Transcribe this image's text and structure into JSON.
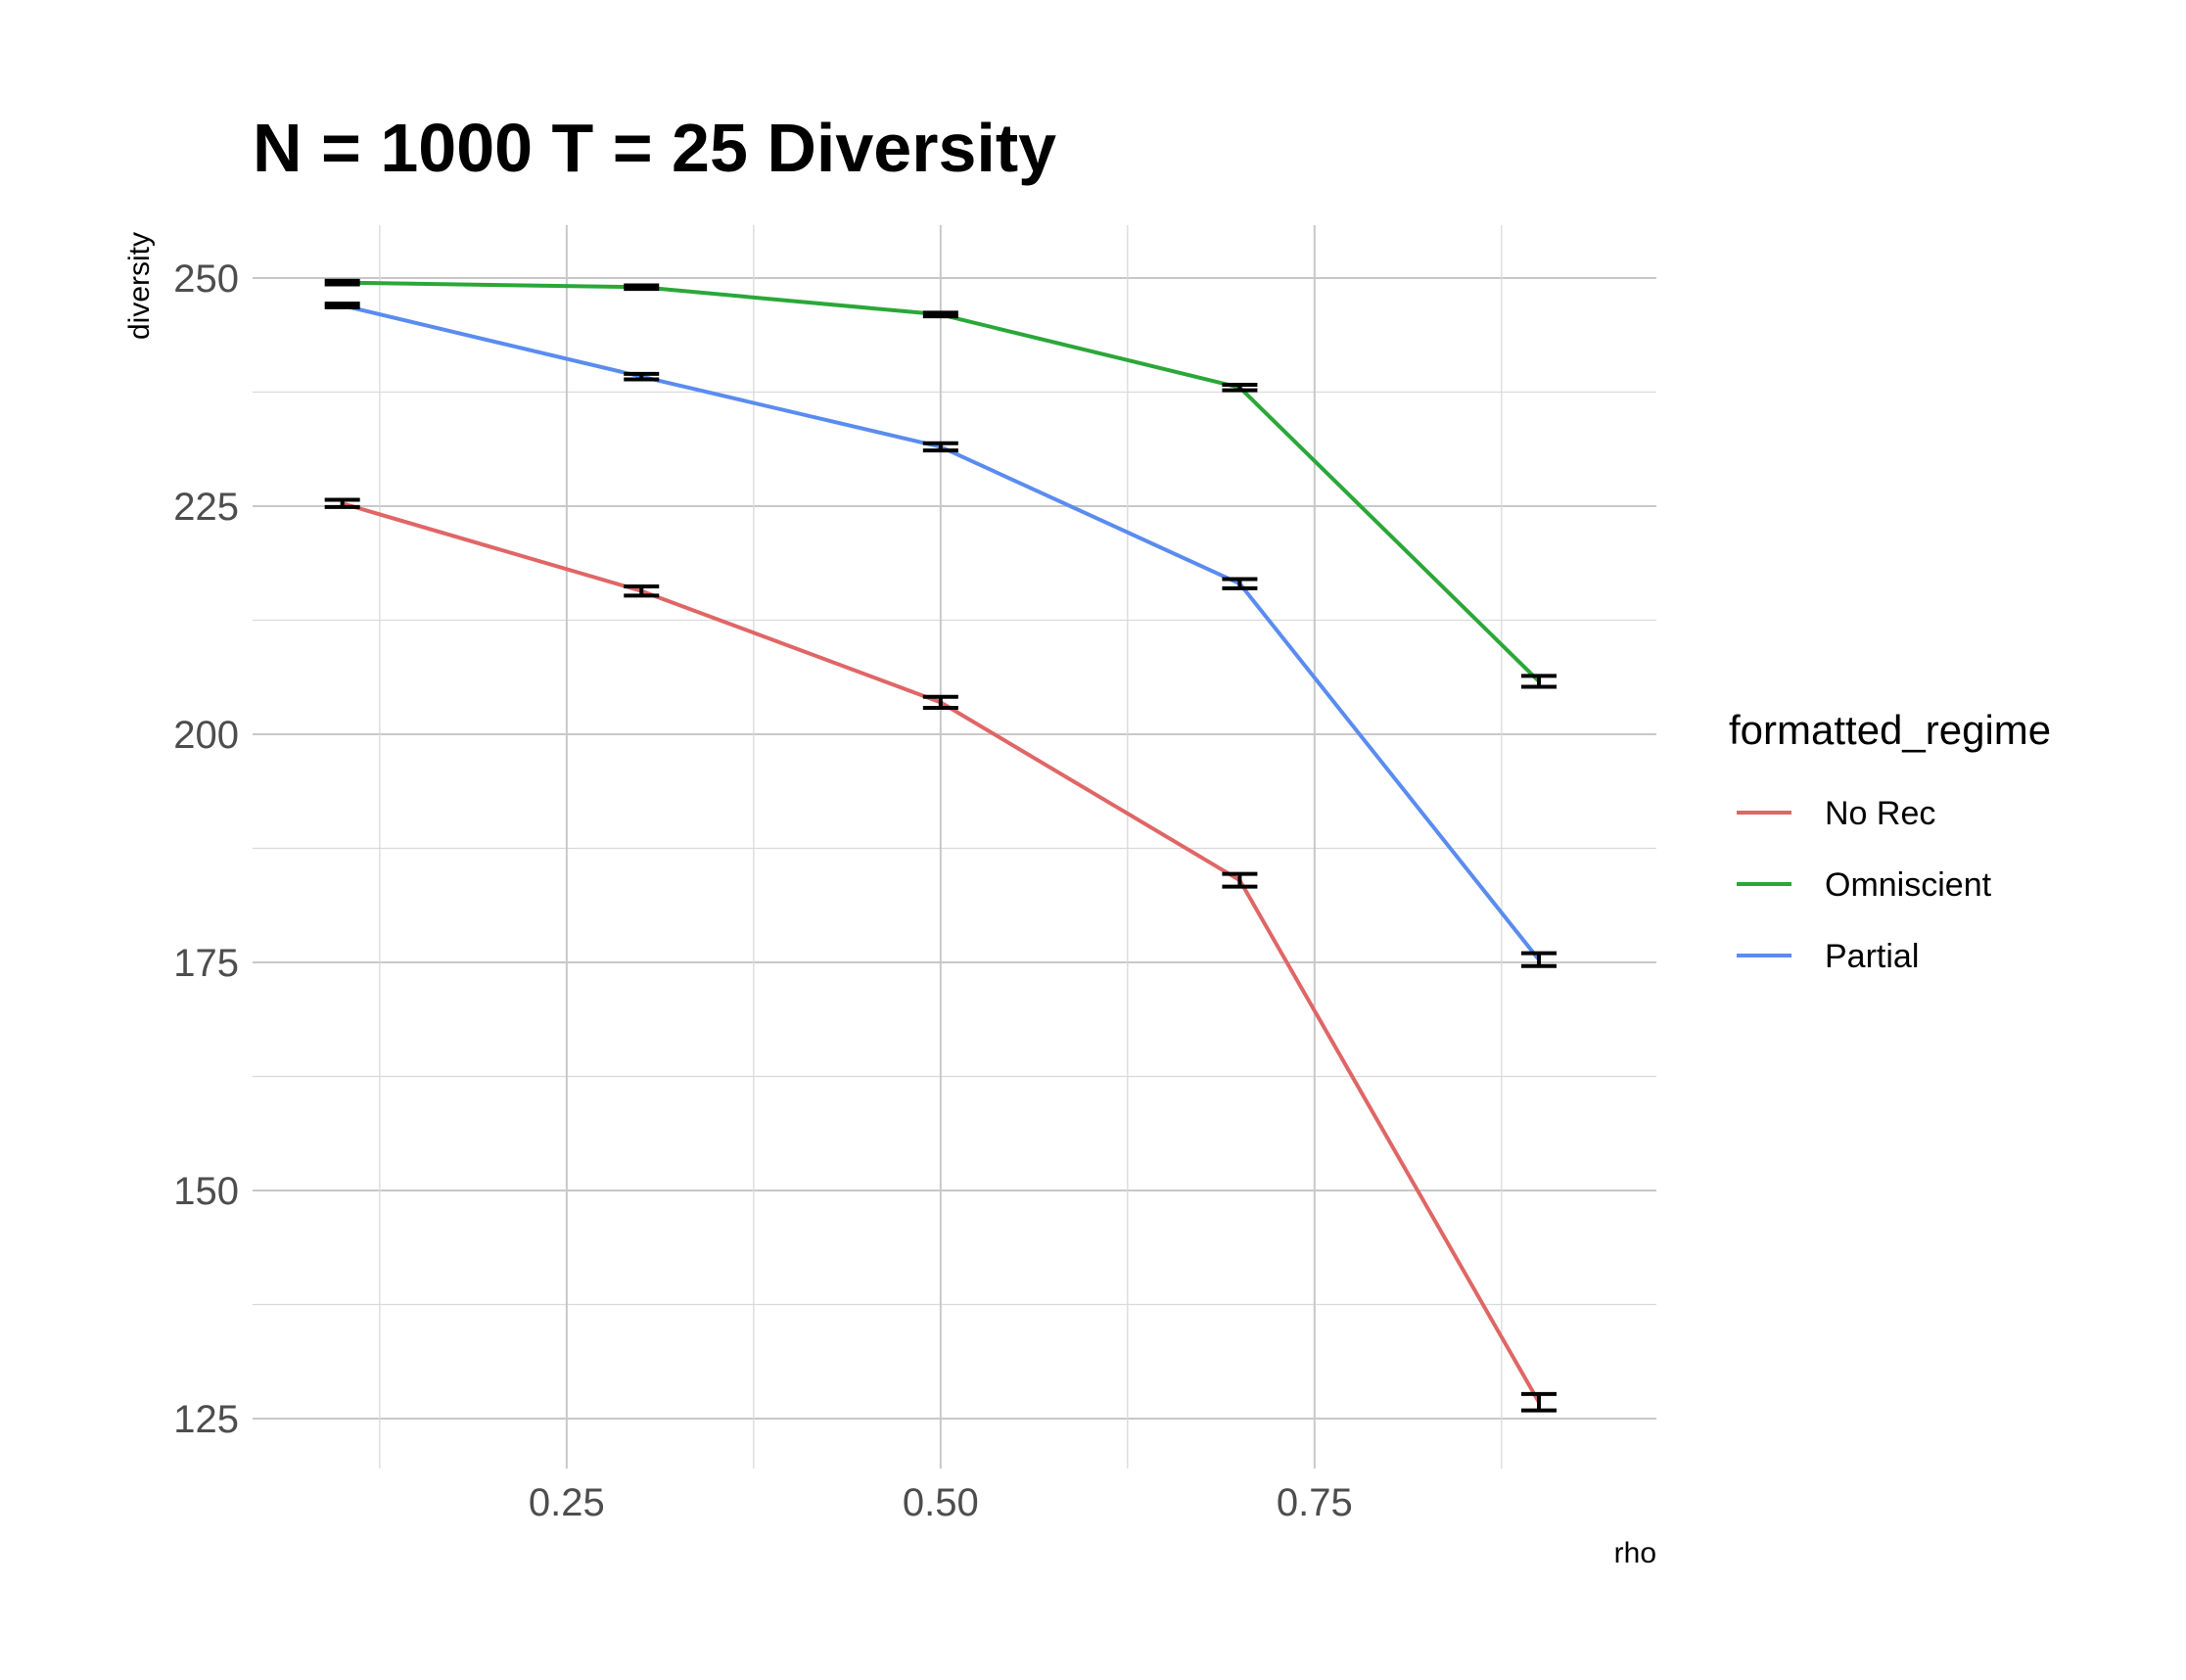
{
  "chart_data": {
    "type": "line",
    "title": "N = 1000 T = 25 Diversity",
    "xlabel": "rho",
    "ylabel": "diversity",
    "x": [
      0.1,
      0.3,
      0.5,
      0.7,
      0.9
    ],
    "xlim": [
      0.04,
      0.9
    ],
    "ylim": [
      120,
      256
    ],
    "x_ticks": [
      0.25,
      0.5,
      0.75
    ],
    "x_tick_labels": [
      "0.25",
      "0.50",
      "0.75"
    ],
    "y_ticks": [
      125,
      150,
      175,
      200,
      225,
      250
    ],
    "y_tick_labels": [
      "125",
      "150",
      "175",
      "200",
      "225",
      "250"
    ],
    "grid": true,
    "legend": {
      "title": "formatted_regime",
      "position": "right"
    },
    "series": [
      {
        "name": "No Rec",
        "color": "#e06666",
        "values": [
          225.3,
          215.7,
          203.5,
          184.0,
          126.8
        ],
        "err": [
          0.4,
          0.5,
          0.6,
          0.7,
          0.9
        ]
      },
      {
        "name": "Omniscient",
        "color": "#2aa738",
        "values": [
          249.5,
          249.0,
          246.0,
          238.0,
          205.8
        ],
        "err": [
          0.2,
          0.2,
          0.2,
          0.3,
          0.6
        ]
      },
      {
        "name": "Partial",
        "color": "#5a8cf0",
        "values": [
          247.0,
          239.2,
          231.5,
          216.5,
          175.3
        ],
        "err": [
          0.2,
          0.3,
          0.4,
          0.5,
          0.7
        ]
      }
    ]
  }
}
